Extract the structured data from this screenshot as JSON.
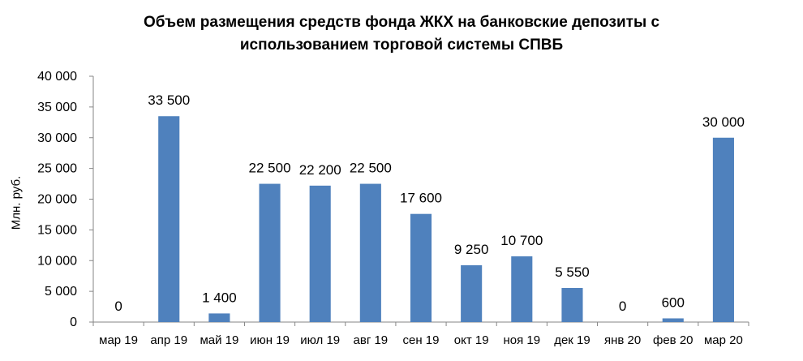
{
  "chart_data": {
    "type": "bar",
    "title": [
      "Объем размещения средств фонда ЖКХ на банковские депозиты с",
      "использованием торговой  системы СПВБ"
    ],
    "ylabel": "Млн. руб.",
    "xlabel": "",
    "categories": [
      "мар 19",
      "апр 19",
      "май 19",
      "июн 19",
      "июл 19",
      "авг 19",
      "сен 19",
      "окт 19",
      "ноя 19",
      "дек 19",
      "янв 20",
      "фев 20",
      "мар 20"
    ],
    "values": [
      0,
      33500,
      1400,
      22500,
      22200,
      22500,
      17600,
      9250,
      10700,
      5550,
      0,
      600,
      30000
    ],
    "data_labels": [
      "0",
      "33 500",
      "1 400",
      "22 500",
      "22 200",
      "22 500",
      "17 600",
      "9 250",
      "10 700",
      "5 550",
      "0",
      "600",
      "30 000"
    ],
    "ylim": [
      0,
      40000
    ],
    "yticks": [
      0,
      5000,
      10000,
      15000,
      20000,
      25000,
      30000,
      35000,
      40000
    ],
    "ytick_labels": [
      "0",
      "5 000",
      "10 000",
      "15 000",
      "20 000",
      "25 000",
      "30 000",
      "35 000",
      "40 000"
    ],
    "grid": false,
    "legend": "none",
    "colors": {
      "bar": "#4F81BD",
      "axis": "#868686"
    }
  }
}
